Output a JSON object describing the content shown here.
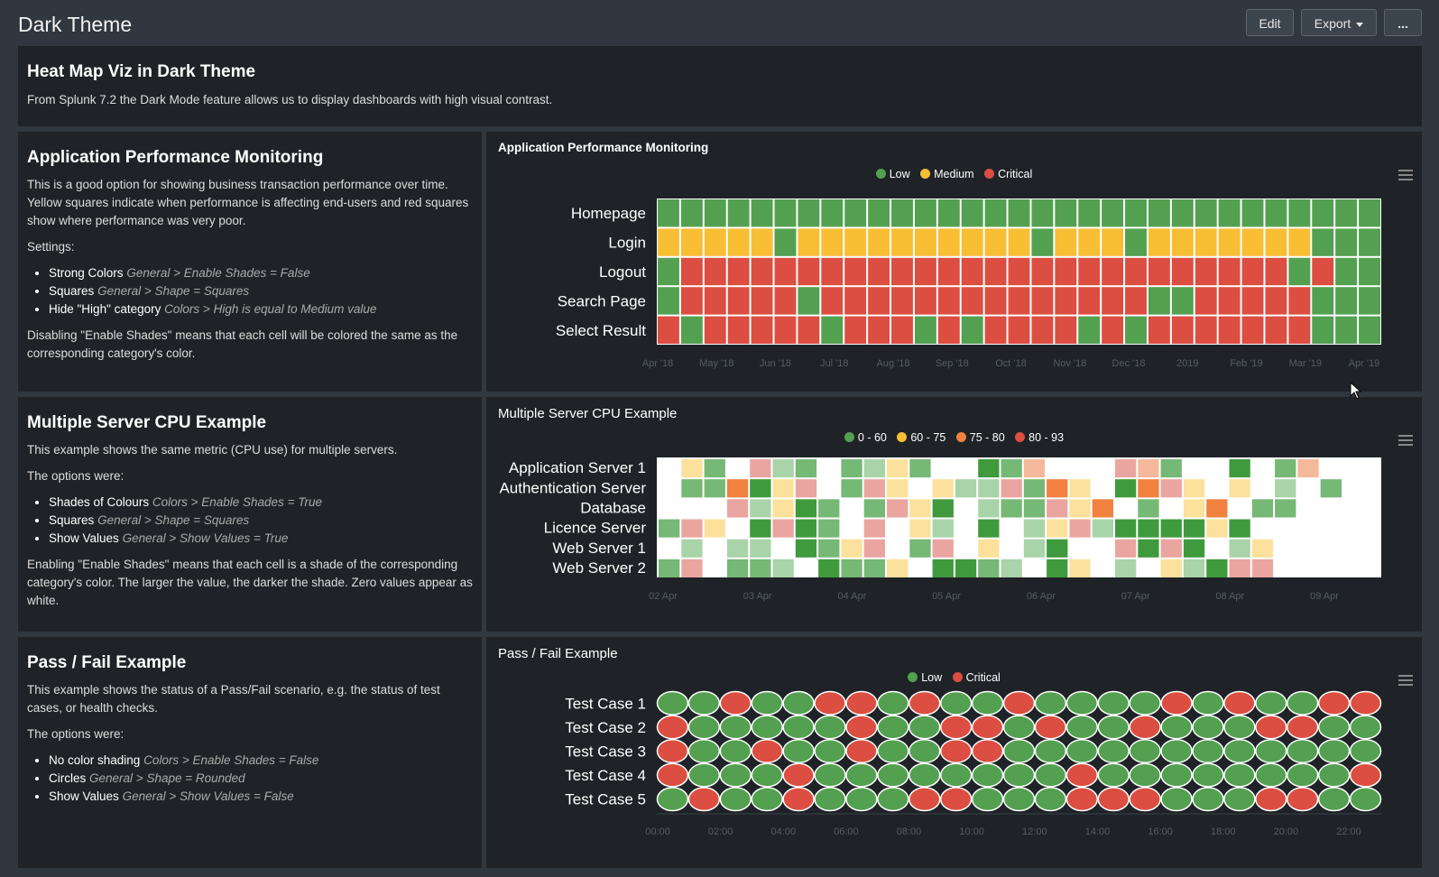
{
  "header": {
    "title": "Dark Theme",
    "edit_label": "Edit",
    "export_label": "Export",
    "more_label": "..."
  },
  "intro": {
    "title": "Heat Map Viz in Dark Theme",
    "text": "From Splunk 7.2 the Dark Mode feature allows us to display dashboards with high visual contrast."
  },
  "apm": {
    "title": "Application Performance Monitoring",
    "desc": "This is a good option for showing business transaction performance over time. Yellow squares indicate when performance is affecting end-users and red squares show where performance was very poor.",
    "settings_label": "Settings:",
    "settings": [
      {
        "name": "Strong Colors",
        "path": "General > Enable Shades = False"
      },
      {
        "name": "Squares",
        "path": "General > Shape = Squares"
      },
      {
        "name": "Hide \"High\" category",
        "path": "Colors > High is equal to Medium value"
      }
    ],
    "note": "Disabling \"Enable Shades\" means that each cell will be colored the same as the corresponding category's color."
  },
  "cpu": {
    "title": "Multiple Server CPU Example",
    "desc": "This example shows the same metric (CPU use) for multiple servers.",
    "options_label": "The options were:",
    "options": [
      {
        "name": "Shades of Colours",
        "path": "Colors > Enable Shades = True"
      },
      {
        "name": "Squares",
        "path": "General > Shape = Squares"
      },
      {
        "name": "Show Values",
        "path": "General > Show Values = True"
      }
    ],
    "note": "Enabling \"Enable Shades\" means that each cell is a shade of the corresponding category's color. The larger the value, the darker the shade. Zero values appear as white."
  },
  "passfail": {
    "title": "Pass / Fail Example",
    "desc": "This example shows the status of a Pass/Fail scenario, e.g. the status of test cases, or health checks.",
    "options_label": "The options were:",
    "options": [
      {
        "name": "No color shading",
        "path": "Colors > Enable Shades = False"
      },
      {
        "name": "Circles",
        "path": "General > Shape = Rounded"
      },
      {
        "name": "Show Values",
        "path": "General > Show Values = False"
      }
    ]
  },
  "chart_data": [
    {
      "type": "heatmap",
      "title": "Application Performance Monitoring",
      "legend": [
        {
          "name": "Low",
          "color": "#53a051"
        },
        {
          "name": "Medium",
          "color": "#f8be34"
        },
        {
          "name": "Critical",
          "color": "#dc4e41"
        }
      ],
      "rows": [
        "Homepage",
        "Login",
        "Logout",
        "Search Page",
        "Select Result"
      ],
      "x_ticks": [
        "Apr '18",
        "May '18",
        "Jun '18",
        "Jul '18",
        "Aug '18",
        "Sep '18",
        "Oct '18",
        "Nov '18",
        "Dec '18",
        "2019",
        "Feb '19",
        "Mar '19",
        "Apr '19"
      ],
      "grid": [
        "LLLLLLLLLLLLLLLLLLLLLLLLLLLLLLL",
        "MMMMMLMMMMMMMMMMLMMMLMMMMMMMLLL",
        "LCCCCCCCCCCCCCCCCCCCCCCCCCCLCLL",
        "LCCCCCLCCCCCCCCCCCCCCLLCCCCCLLL",
        "CLCCCCCLCCCLCLCCCCLCLCCCCCCCLLL"
      ],
      "category_key": {
        "L": "Low",
        "M": "Medium",
        "C": "Critical"
      }
    },
    {
      "type": "heatmap",
      "title": "Multiple Server CPU Example",
      "legend": [
        {
          "name": "0 - 60",
          "color": "#53a051"
        },
        {
          "name": "60 - 75",
          "color": "#f8be34"
        },
        {
          "name": "75 - 80",
          "color": "#f1813f"
        },
        {
          "name": "80 - 93",
          "color": "#dc4e41"
        }
      ],
      "rows": [
        "Application Server 1",
        "Authentication Server",
        "Database",
        "Licence Server",
        "Web Server 1",
        "Web Server 2"
      ],
      "x_ticks": [
        "02 Apr",
        "03 Apr",
        "04 Apr",
        "05 Apr",
        "06 Apr",
        "07 Apr",
        "08 Apr",
        "09 Apr"
      ],
      "grid": [
        "0yg0rlg0glyg00Gg2000r2g00G0g20",
        "0gg1Gyr0gry0yllrg1y0G1ry0y0l0g",
        "000rlyGg0gryG0lggry10g0y10gg00",
        "gry0GrGg0r0yl0G0lyrlGGGGyG0000",
        "0l0ll0Ggyr0gr0y0lG00rGrG0ly000",
        "gr0ggl0Gggy0GGgl0Gy0l0ylGrr000"
      ],
      "cell_key": {
        "0": "empty",
        "l": "0 - 60 (light)",
        "g": "0 - 60",
        "G": "0 - 60 (dark)",
        "y": "60 - 75",
        "1": "75 - 80",
        "2": "75 - 80 (light)",
        "r": "80 - 93"
      }
    },
    {
      "type": "heatmap",
      "title": "Pass / Fail Example",
      "legend": [
        {
          "name": "Low",
          "color": "#53a051"
        },
        {
          "name": "Critical",
          "color": "#dc4e41"
        }
      ],
      "rows": [
        "Test Case 1",
        "Test Case 2",
        "Test Case 3",
        "Test Case 4",
        "Test Case 5"
      ],
      "x_ticks": [
        "00:00",
        "02:00",
        "04:00",
        "06:00",
        "08:00",
        "10:00",
        "12:00",
        "14:00",
        "16:00",
        "18:00",
        "20:00",
        "22:00"
      ],
      "grid": [
        "LLCLLCCLCLLCLLLLCLCLLCC",
        "CLLLLLCLLCCLCLLCLLLCCLL",
        "CLLCLLCLLCCLLLLLLLLLLLL",
        "CLLLCLLLLLLLLCLLLLLLLLC",
        "LCLLCLLLCCLLLCCCLLLCCLL"
      ],
      "category_key": {
        "L": "Low",
        "C": "Critical"
      }
    }
  ]
}
